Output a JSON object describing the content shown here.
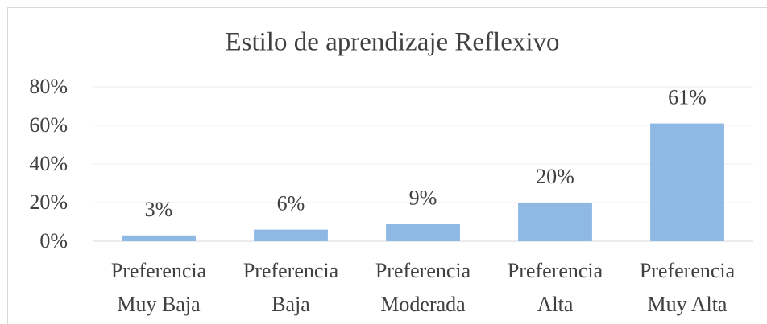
{
  "chart_data": {
    "type": "bar",
    "title": "Estilo de aprendizaje Reflexivo",
    "categories": [
      "Preferencia Muy Baja",
      "Preferencia Baja",
      "Preferencia Moderada",
      "Preferencia Alta",
      "Preferencia Muy Alta"
    ],
    "values": [
      3,
      6,
      9,
      20,
      61
    ],
    "value_labels": [
      "3%",
      "6%",
      "9%",
      "20%",
      "61%"
    ],
    "color": "#8fb9e5",
    "ylim": [
      0,
      80
    ],
    "yticks": [
      {
        "value": 0,
        "label": "0%"
      },
      {
        "value": 20,
        "label": "20%"
      },
      {
        "value": 40,
        "label": "40%"
      },
      {
        "value": 60,
        "label": "60%"
      },
      {
        "value": 80,
        "label": "80%"
      }
    ],
    "grid": true
  }
}
